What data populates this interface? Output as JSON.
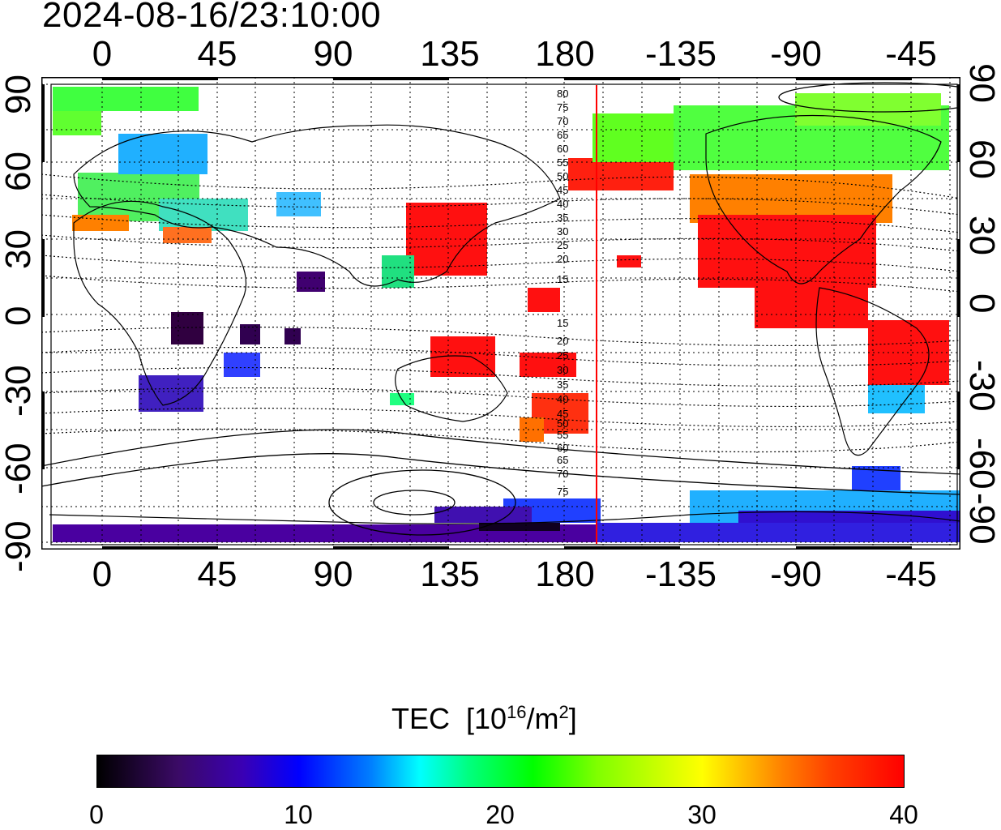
{
  "timestamp": "2024-08-16/23:10:00",
  "map": {
    "x_ticks": [
      "0",
      "45",
      "90",
      "135",
      "180",
      "-135",
      "-90",
      "-45"
    ],
    "y_ticks": [
      "90",
      "60",
      "30",
      "0",
      "-30",
      "-60",
      "-90"
    ],
    "y_ticks_right": [
      "90",
      "60",
      "30",
      "0",
      "-30",
      "-60",
      "-90"
    ],
    "contour_labels_north": [
      "80",
      "75",
      "70",
      "65",
      "60",
      "55",
      "50",
      "45",
      "40",
      "35",
      "30",
      "25",
      "20",
      "15"
    ],
    "contour_labels_south": [
      "15",
      "20",
      "25",
      "30",
      "35",
      "40",
      "45",
      "50",
      "55",
      "60",
      "65",
      "70",
      "75"
    ],
    "terminator_longitude": -170,
    "colors": {
      "terminator": "#ff0000",
      "grid": "#000000"
    }
  },
  "colorbar": {
    "title_main": "TEC",
    "title_unit_pre": "[10",
    "title_unit_exp": "16",
    "title_unit_mid": "/m",
    "title_unit_exp2": "2",
    "title_unit_post": "]",
    "ticks": [
      "0",
      "10",
      "20",
      "30",
      "40"
    ],
    "range": [
      0,
      40
    ]
  }
}
